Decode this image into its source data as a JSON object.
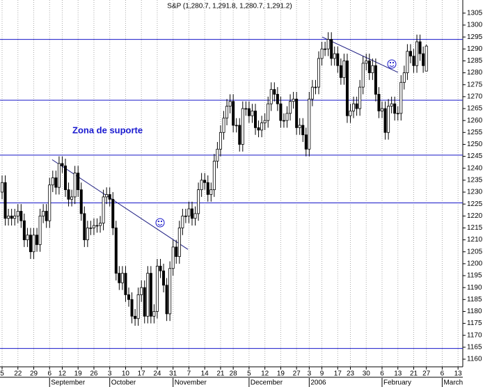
{
  "chart_data": {
    "type": "candlestick",
    "title": "S&P (1,280.7, 1,291.8, 1,280.7, 1,291.2)",
    "annotation": "Zona de suporte",
    "up_color": "#ffffff",
    "down_color": "#000000",
    "line_color": "#1414c8",
    "ylim": [
      1156.8,
      1310.5
    ],
    "yticks": [
      1160,
      1165,
      1170,
      1175,
      1180,
      1185,
      1190,
      1195,
      1200,
      1205,
      1210,
      1215,
      1220,
      1225,
      1230,
      1235,
      1240,
      1245,
      1250,
      1255,
      1260,
      1265,
      1270,
      1275,
      1280,
      1285,
      1290,
      1295,
      1300,
      1305
    ],
    "grid": true,
    "categories": [
      "5",
      null,
      null,
      null,
      null,
      "22",
      null,
      null,
      null,
      null,
      "29",
      null,
      null,
      null,
      null,
      "6",
      null,
      null,
      null,
      "12",
      null,
      null,
      null,
      null,
      "19",
      null,
      null,
      null,
      null,
      "26",
      null,
      null,
      null,
      null,
      "3",
      null,
      null,
      null,
      null,
      "10",
      null,
      null,
      null,
      null,
      "17",
      null,
      null,
      null,
      null,
      "24",
      null,
      null,
      null,
      null,
      "31",
      null,
      null,
      null,
      null,
      "7",
      null,
      null,
      null,
      null,
      "14",
      null,
      null,
      null,
      null,
      "21",
      null,
      null,
      null,
      "28",
      null,
      null,
      null,
      null,
      "5",
      null,
      null,
      null,
      null,
      "12",
      null,
      null,
      null,
      null,
      "19",
      null,
      null,
      null,
      null,
      "27",
      null,
      null,
      null,
      "3",
      null,
      null,
      null,
      "9",
      null,
      null,
      null,
      null,
      "17",
      null,
      null,
      null,
      "23",
      null,
      null,
      null,
      null,
      "30",
      null,
      null,
      null,
      null,
      "6",
      null,
      null,
      null,
      null,
      "13",
      null,
      null,
      null,
      null,
      "21",
      null,
      null,
      null,
      "27",
      null,
      null,
      null,
      null,
      "6",
      null,
      null,
      null,
      null,
      "13"
    ],
    "months": [
      null,
      null,
      null,
      null,
      null,
      null,
      null,
      null,
      null,
      null,
      null,
      null,
      null,
      null,
      null,
      "September",
      null,
      null,
      null,
      null,
      null,
      null,
      null,
      null,
      null,
      null,
      null,
      null,
      null,
      null,
      null,
      null,
      null,
      null,
      "October",
      null,
      null,
      null,
      null,
      null,
      null,
      null,
      null,
      null,
      null,
      null,
      null,
      null,
      null,
      null,
      null,
      null,
      null,
      null,
      "November",
      null,
      null,
      null,
      null,
      null,
      null,
      null,
      null,
      null,
      null,
      null,
      null,
      null,
      null,
      null,
      null,
      null,
      null,
      null,
      null,
      null,
      null,
      null,
      "December",
      null,
      null,
      null,
      null,
      null,
      null,
      null,
      null,
      null,
      null,
      null,
      null,
      null,
      null,
      null,
      null,
      null,
      null,
      "2006",
      null,
      null,
      null,
      null,
      null,
      null,
      null,
      null,
      null,
      null,
      null,
      null,
      null,
      null,
      null,
      null,
      null,
      null,
      null,
      null,
      null,
      null,
      "February",
      null,
      null,
      null,
      null,
      null,
      null,
      null,
      null,
      null,
      null,
      null,
      null,
      null,
      null,
      null,
      null,
      null,
      null,
      "March",
      null,
      null,
      null,
      null,
      null
    ],
    "open": [
      1230,
      1234,
      1219,
      1220,
      1219,
      1220,
      1222,
      1218,
      1210,
      1212,
      1205,
      1212,
      1208,
      1220,
      1222,
      1218,
      1233,
      1236,
      1232,
      1242,
      1241,
      1231,
      1227,
      1228,
      1238,
      1231,
      1221,
      1210,
      1215,
      1215,
      1216,
      1216,
      1217,
      1228,
      1229,
      1227,
      1215,
      1196,
      1192,
      1196,
      1187,
      1185,
      1178,
      1177,
      1187,
      1190,
      1178,
      1196,
      1178,
      1180,
      1199,
      1197,
      1191,
      1179,
      1198,
      1207,
      1203,
      1215,
      1220,
      1220,
      1223,
      1219,
      1221,
      1231,
      1235,
      1234,
      1229,
      1231,
      1243,
      1248,
      1255,
      1261,
      1266,
      1268,
      1258,
      1258,
      1250,
      1265,
      1265,
      1262,
      1264,
      1257,
      1256,
      1259,
      1260,
      1267,
      1273,
      1271,
      1267,
      1260,
      1260,
      1263,
      1268,
      1269,
      1257,
      1258,
      1254,
      1248,
      1269,
      1274,
      1274,
      1286,
      1290,
      1290,
      1294,
      1286,
      1288,
      1283,
      1278,
      1285,
      1262,
      1264,
      1267,
      1265,
      1274,
      1284,
      1285,
      1280,
      1283,
      1271,
      1264,
      1265,
      1255,
      1266,
      1267,
      1263,
      1263,
      1276,
      1280,
      1289,
      1287,
      1283,
      1293,
      1288,
      1280.7,
      null,
      null,
      null,
      null,
      null,
      null,
      null,
      null,
      null,
      null
    ],
    "high": [
      1237,
      1237,
      1223,
      1223,
      1223,
      1225,
      1225,
      1221,
      1215,
      1215,
      1215,
      1215,
      1223,
      1225,
      1225,
      1236,
      1239,
      1239,
      1245,
      1245,
      1244,
      1234,
      1231,
      1241,
      1241,
      1234,
      1224,
      1218,
      1218,
      1219,
      1219,
      1220,
      1231,
      1232,
      1232,
      1230,
      1218,
      1199,
      1199,
      1199,
      1190,
      1188,
      1181,
      1190,
      1193,
      1193,
      1199,
      1199,
      1183,
      1202,
      1202,
      1200,
      1194,
      1201,
      1210,
      1210,
      1218,
      1223,
      1223,
      1226,
      1226,
      1224,
      1234,
      1238,
      1238,
      1237,
      1234,
      1246,
      1251,
      1258,
      1264,
      1269,
      1271,
      1271,
      1261,
      1261,
      1268,
      1268,
      1268,
      1267,
      1267,
      1260,
      1262,
      1263,
      1270,
      1276,
      1276,
      1274,
      1270,
      1263,
      1266,
      1271,
      1272,
      1272,
      1261,
      1261,
      1257,
      1272,
      1277,
      1277,
      1289,
      1293,
      1293,
      1297,
      1297,
      1291,
      1291,
      1286,
      1288,
      1288,
      1267,
      1270,
      1270,
      1277,
      1287,
      1288,
      1288,
      1286,
      1286,
      1274,
      1268,
      1268,
      1269,
      1270,
      1270,
      1266,
      1279,
      1283,
      1292,
      1292,
      1290,
      1296,
      1296,
      1291,
      1291.8,
      null,
      null,
      null,
      null,
      null,
      null,
      null,
      null,
      null,
      null
    ],
    "low": [
      1227,
      1216,
      1216,
      1216,
      1216,
      1217,
      1215,
      1207,
      1207,
      1202,
      1202,
      1205,
      1205,
      1217,
      1215,
      1215,
      1230,
      1229,
      1229,
      1238,
      1228,
      1224,
      1224,
      1225,
      1228,
      1218,
      1207,
      1207,
      1212,
      1212,
      1213,
      1213,
      1214,
      1225,
      1224,
      1212,
      1193,
      1189,
      1189,
      1184,
      1182,
      1175,
      1174,
      1174,
      1184,
      1175,
      1175,
      1175,
      1175,
      1177,
      1194,
      1188,
      1176,
      1176,
      1195,
      1200,
      1200,
      1212,
      1217,
      1217,
      1216,
      1216,
      1218,
      1228,
      1231,
      1226,
      1226,
      1228,
      1240,
      1245,
      1252,
      1258,
      1263,
      1255,
      1255,
      1247,
      1247,
      1262,
      1259,
      1259,
      1254,
      1253,
      1253,
      1256,
      1257,
      1264,
      1268,
      1264,
      1257,
      1257,
      1257,
      1260,
      1265,
      1254,
      1254,
      1251,
      1245,
      1245,
      1266,
      1271,
      1271,
      1283,
      1287,
      1287,
      1283,
      1283,
      1280,
      1275,
      1275,
      1259,
      1259,
      1261,
      1262,
      1262,
      1271,
      1281,
      1277,
      1277,
      1268,
      1261,
      1261,
      1252,
      1252,
      1263,
      1260,
      1260,
      1260,
      1273,
      1277,
      1284,
      1280,
      1280,
      1285,
      1280,
      1280.7,
      null,
      null,
      null,
      null,
      null,
      null,
      null,
      null,
      null,
      null
    ],
    "close": [
      1234,
      1219,
      1220,
      1219,
      1220,
      1222,
      1218,
      1210,
      1212,
      1205,
      1212,
      1208,
      1220,
      1222,
      1218,
      1233,
      1236,
      1232,
      1242,
      1241,
      1231,
      1227,
      1228,
      1238,
      1231,
      1221,
      1210,
      1215,
      1215,
      1216,
      1216,
      1217,
      1228,
      1229,
      1227,
      1215,
      1196,
      1192,
      1196,
      1187,
      1185,
      1178,
      1177,
      1187,
      1190,
      1178,
      1196,
      1178,
      1180,
      1199,
      1197,
      1191,
      1179,
      1198,
      1207,
      1203,
      1215,
      1220,
      1220,
      1223,
      1219,
      1221,
      1231,
      1235,
      1234,
      1229,
      1231,
      1243,
      1248,
      1255,
      1261,
      1266,
      1268,
      1258,
      1258,
      1250,
      1265,
      1265,
      1262,
      1264,
      1257,
      1256,
      1259,
      1260,
      1267,
      1273,
      1271,
      1267,
      1260,
      1260,
      1263,
      1268,
      1269,
      1257,
      1258,
      1254,
      1248,
      1269,
      1274,
      1274,
      1286,
      1290,
      1290,
      1294,
      1286,
      1288,
      1283,
      1278,
      1285,
      1262,
      1264,
      1267,
      1265,
      1274,
      1284,
      1285,
      1280,
      1283,
      1271,
      1264,
      1265,
      1255,
      1266,
      1267,
      1263,
      1263,
      1276,
      1280,
      1289,
      1287,
      1283,
      1293,
      1288,
      1283,
      1291.2,
      null,
      null,
      null,
      null,
      null,
      null,
      null,
      null,
      null,
      null
    ],
    "hlines": [
      1294,
      1268.5,
      1245.5,
      1225.5,
      1164.5
    ],
    "trendlines": [
      {
        "x": [
          15.8,
          58.7
        ],
        "y": [
          1243.6,
          1206
        ]
      },
      {
        "x": [
          101.1,
          125
        ],
        "y": [
          1295,
          1280.2
        ]
      }
    ]
  }
}
